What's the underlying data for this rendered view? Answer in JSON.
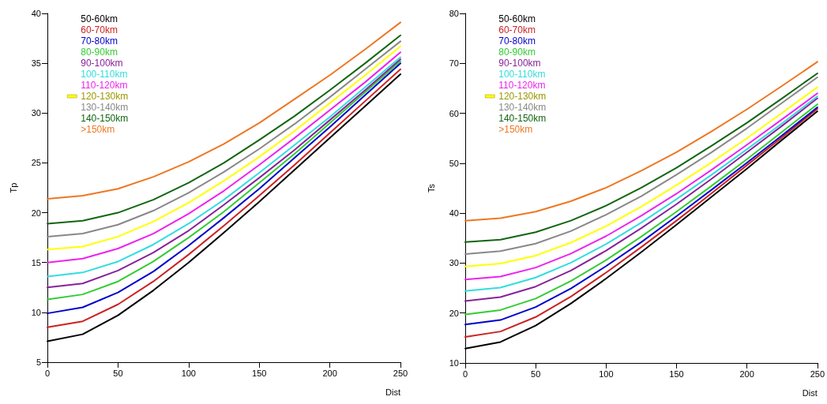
{
  "chart_data": [
    {
      "type": "line",
      "xlabel": "Dist",
      "ylabel": "Tp",
      "x": [
        0,
        25,
        50,
        75,
        100,
        125,
        150,
        175,
        200,
        225,
        250
      ],
      "xlim": [
        0,
        250
      ],
      "xticks": [
        0,
        50,
        100,
        150,
        200,
        250
      ],
      "ylim": [
        5,
        40
      ],
      "yticks": [
        5,
        10,
        15,
        20,
        25,
        30,
        35,
        40
      ],
      "grid": false,
      "legend": "top left",
      "marker": "none",
      "line_style": "solid",
      "series": [
        {
          "name": "50-60km",
          "color": "#000000",
          "values": [
            7.1,
            7.8,
            9.7,
            12.2,
            15.0,
            18.0,
            21.1,
            24.3,
            27.5,
            30.7,
            33.9
          ]
        },
        {
          "name": "60-70km",
          "color": "#cc2222",
          "values": [
            8.5,
            9.1,
            10.8,
            13.1,
            15.8,
            18.7,
            21.7,
            24.8,
            28.0,
            31.2,
            34.4
          ]
        },
        {
          "name": "70-80km",
          "color": "#0000cc",
          "values": [
            9.9,
            10.5,
            12.0,
            14.1,
            16.7,
            19.5,
            22.4,
            25.5,
            28.6,
            31.8,
            35.0
          ]
        },
        {
          "name": "80-90km",
          "color": "#33cc33",
          "values": [
            11.3,
            11.8,
            13.1,
            15.1,
            17.5,
            20.1,
            23.0,
            25.9,
            29.0,
            32.1,
            35.2
          ]
        },
        {
          "name": "90-100km",
          "color": "#882299",
          "values": [
            12.5,
            12.9,
            14.2,
            16.0,
            18.2,
            20.8,
            23.5,
            26.3,
            29.3,
            32.3,
            35.4
          ]
        },
        {
          "name": "100-110km",
          "color": "#33dddd",
          "values": [
            13.6,
            14.0,
            15.1,
            16.8,
            18.9,
            21.3,
            24.0,
            26.8,
            29.6,
            32.6,
            35.6
          ]
        },
        {
          "name": "110-120km",
          "color": "#ee22ee",
          "values": [
            15.0,
            15.4,
            16.4,
            17.9,
            19.9,
            22.2,
            24.8,
            27.5,
            30.3,
            33.1,
            36.1
          ]
        },
        {
          "name": "120-130km",
          "color": "#ffff00",
          "values": [
            16.3,
            16.6,
            17.6,
            19.1,
            21.0,
            23.2,
            25.6,
            28.2,
            31.0,
            33.8,
            36.7
          ]
        },
        {
          "name": "130-140km",
          "color": "#888888",
          "values": [
            17.6,
            17.9,
            18.8,
            20.2,
            22.0,
            24.1,
            26.4,
            28.9,
            31.6,
            34.4,
            37.2
          ]
        },
        {
          "name": "140-150km",
          "color": "#116611",
          "values": [
            18.9,
            19.2,
            20.0,
            21.3,
            23.0,
            25.0,
            27.3,
            29.7,
            32.3,
            35.0,
            37.8
          ]
        },
        {
          "name": ">150km",
          "color": "#ee7722",
          "values": [
            21.4,
            21.7,
            22.4,
            23.6,
            25.1,
            26.9,
            29.0,
            31.4,
            33.8,
            36.4,
            39.1
          ]
        }
      ]
    },
    {
      "type": "line",
      "xlabel": "Dist",
      "ylabel": "Ts",
      "x": [
        0,
        25,
        50,
        75,
        100,
        125,
        150,
        175,
        200,
        225,
        250
      ],
      "xlim": [
        0,
        250
      ],
      "xticks": [
        0,
        50,
        100,
        150,
        200,
        250
      ],
      "ylim": [
        10,
        80
      ],
      "yticks": [
        10,
        20,
        30,
        40,
        50,
        60,
        70,
        80
      ],
      "grid": false,
      "legend": "top left",
      "marker": "none",
      "line_style": "solid",
      "series": [
        {
          "name": "50-60km",
          "color": "#000000",
          "values": [
            12.9,
            14.2,
            17.5,
            21.9,
            26.9,
            32.2,
            37.7,
            43.3,
            48.9,
            54.7,
            60.4
          ]
        },
        {
          "name": "60-70km",
          "color": "#cc2222",
          "values": [
            15.2,
            16.3,
            19.2,
            23.3,
            28.1,
            33.2,
            38.5,
            44.0,
            49.6,
            55.2,
            60.9
          ]
        },
        {
          "name": "70-80km",
          "color": "#0000cc",
          "values": [
            17.7,
            18.6,
            21.2,
            24.9,
            29.4,
            34.2,
            39.4,
            44.7,
            50.1,
            55.6,
            61.2
          ]
        },
        {
          "name": "80-90km",
          "color": "#33cc33",
          "values": [
            19.7,
            20.6,
            22.9,
            26.4,
            30.6,
            35.3,
            40.3,
            45.5,
            50.8,
            56.3,
            61.8
          ]
        },
        {
          "name": "90-100km",
          "color": "#882299",
          "values": [
            22.4,
            23.2,
            25.3,
            28.5,
            32.5,
            37.0,
            41.8,
            46.9,
            52.2,
            57.5,
            63.0
          ]
        },
        {
          "name": "100-110km",
          "color": "#33dddd",
          "values": [
            24.4,
            25.1,
            27.1,
            30.1,
            33.8,
            38.1,
            42.8,
            47.7,
            52.8,
            58.0,
            63.4
          ]
        },
        {
          "name": "110-120km",
          "color": "#ee22ee",
          "values": [
            26.7,
            27.3,
            29.1,
            31.9,
            35.4,
            39.5,
            43.9,
            48.7,
            53.7,
            58.8,
            64.0
          ]
        },
        {
          "name": "120-130km",
          "color": "#ffff00",
          "values": [
            29.3,
            29.9,
            31.5,
            34.1,
            37.4,
            41.3,
            45.6,
            50.2,
            55.0,
            60.1,
            65.2
          ]
        },
        {
          "name": "130-140km",
          "color": "#888888",
          "values": [
            31.8,
            32.4,
            33.9,
            36.4,
            39.7,
            43.4,
            47.7,
            52.2,
            57.0,
            62.1,
            67.2
          ]
        },
        {
          "name": "140-150km",
          "color": "#116611",
          "values": [
            34.2,
            34.7,
            36.2,
            38.5,
            41.5,
            45.1,
            49.1,
            53.5,
            58.1,
            63.0,
            68.0
          ]
        },
        {
          "name": ">150km",
          "color": "#ee7722",
          "values": [
            38.5,
            39.0,
            40.3,
            42.4,
            45.1,
            48.5,
            52.2,
            56.4,
            60.8,
            65.5,
            70.3
          ]
        }
      ]
    }
  ]
}
